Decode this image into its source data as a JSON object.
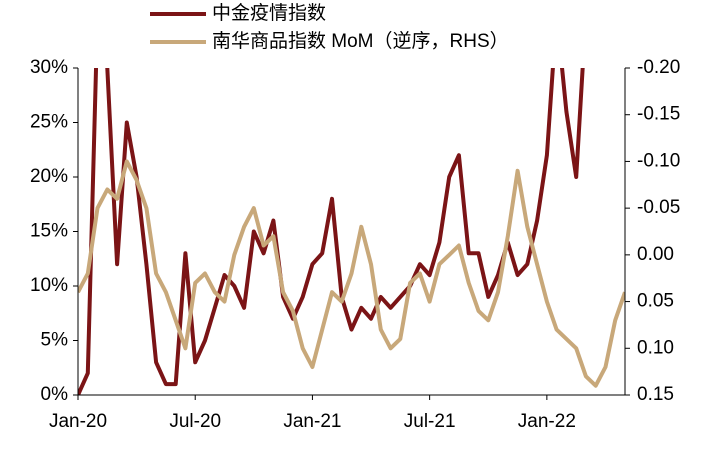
{
  "chart_data": {
    "type": "line",
    "categories": [
      "Jan-20",
      null,
      null,
      null,
      null,
      null,
      null,
      null,
      null,
      null,
      null,
      null,
      "Jul-20",
      null,
      null,
      null,
      null,
      null,
      null,
      null,
      null,
      null,
      null,
      null,
      "Jan-21",
      null,
      null,
      null,
      null,
      null,
      null,
      null,
      null,
      null,
      null,
      null,
      "Jul-21",
      null,
      null,
      null,
      null,
      null,
      null,
      null,
      null,
      null,
      null,
      null,
      "Jan-22",
      null,
      null,
      null,
      null,
      null,
      null,
      null,
      null
    ],
    "series": [
      {
        "name": "中金疫情指数",
        "color": "#7b1416",
        "axis": "y",
        "values": [
          0,
          2,
          35,
          30,
          12,
          25,
          20,
          12,
          3,
          1,
          1,
          13,
          3,
          5,
          8,
          11,
          10,
          8,
          15,
          13,
          16,
          9,
          7,
          9,
          12,
          13,
          18,
          9,
          6,
          8,
          7,
          9,
          8,
          9,
          10,
          12,
          11,
          14,
          20,
          22,
          13,
          13,
          9,
          11,
          14,
          11,
          12,
          16,
          22,
          35,
          26,
          20,
          35,
          null,
          null,
          null,
          null
        ]
      },
      {
        "name": "南华商品指数 MoM（逆序，RHS）",
        "color": "#c8a87a",
        "axis": "y2",
        "values": [
          0.04,
          0.02,
          -0.05,
          -0.07,
          -0.06,
          -0.1,
          -0.08,
          -0.05,
          0.02,
          0.04,
          0.07,
          0.1,
          0.03,
          0.02,
          0.04,
          0.05,
          0.0,
          -0.03,
          -0.05,
          -0.01,
          -0.02,
          0.04,
          0.06,
          0.1,
          0.12,
          0.08,
          0.04,
          0.05,
          0.02,
          -0.03,
          0.01,
          0.08,
          0.1,
          0.09,
          0.03,
          0.02,
          0.05,
          0.01,
          0.0,
          -0.01,
          0.03,
          0.06,
          0.07,
          0.04,
          -0.02,
          -0.09,
          -0.03,
          0.01,
          0.05,
          0.08,
          0.09,
          0.1,
          0.13,
          0.14,
          0.12,
          0.07,
          0.04
        ]
      }
    ],
    "ylim": [
      0,
      30
    ],
    "yticks": [
      {
        "value": 0,
        "label": "0%"
      },
      {
        "value": 5,
        "label": "5%"
      },
      {
        "value": 10,
        "label": "10%"
      },
      {
        "value": 15,
        "label": "15%"
      },
      {
        "value": 20,
        "label": "20%"
      },
      {
        "value": 25,
        "label": "25%"
      },
      {
        "value": 30,
        "label": "30%"
      }
    ],
    "y2lim": [
      0.15,
      -0.2
    ],
    "y2ticks": [
      {
        "value": -0.2,
        "label": "-0.20"
      },
      {
        "value": -0.15,
        "label": "-0.15"
      },
      {
        "value": -0.1,
        "label": "-0.10"
      },
      {
        "value": -0.05,
        "label": "-0.05"
      },
      {
        "value": 0,
        "label": "0.00"
      },
      {
        "value": 0.05,
        "label": "0.05"
      },
      {
        "value": 0.1,
        "label": "0.10"
      },
      {
        "value": 0.15,
        "label": "0.15"
      }
    ],
    "legend": "top"
  }
}
